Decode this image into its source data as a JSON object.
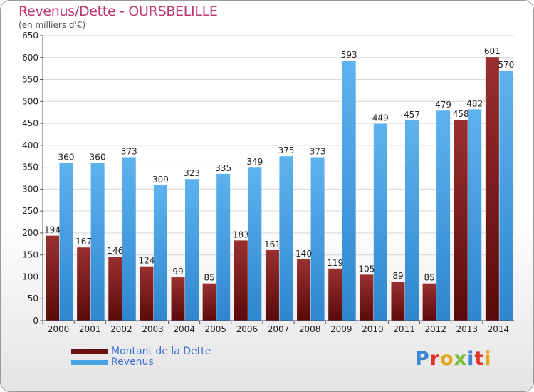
{
  "chart_data": {
    "type": "bar",
    "title": "Revenus/Dette - OURSBELILLE",
    "subtitle": "(en milliers d'€)",
    "categories": [
      "2000",
      "2001",
      "2002",
      "2003",
      "2004",
      "2005",
      "2006",
      "2007",
      "2008",
      "2009",
      "2010",
      "2011",
      "2012",
      "2013",
      "2014"
    ],
    "series": [
      {
        "name": "Montant de la Dette",
        "color": "#7a1a1a",
        "values": [
          194,
          167,
          146,
          124,
          99,
          85,
          183,
          161,
          140,
          119,
          105,
          89,
          85,
          458,
          601
        ]
      },
      {
        "name": "Revenus",
        "color": "#4aa3e6",
        "values": [
          360,
          360,
          373,
          309,
          323,
          335,
          349,
          375,
          373,
          593,
          449,
          457,
          479,
          482,
          570
        ]
      }
    ],
    "yticks": [
      0,
      50,
      100,
      150,
      200,
      250,
      300,
      350,
      400,
      450,
      500,
      550,
      600,
      650
    ],
    "ylim": [
      0,
      650
    ],
    "grid": true
  },
  "legend": {
    "debt_label": "Montant de la Dette",
    "revenue_label": "Revenus"
  },
  "logo": {
    "p": "P",
    "r": "r",
    "o": "o",
    "x": "x",
    "i": "i",
    "t": "t",
    "i2": "i"
  }
}
